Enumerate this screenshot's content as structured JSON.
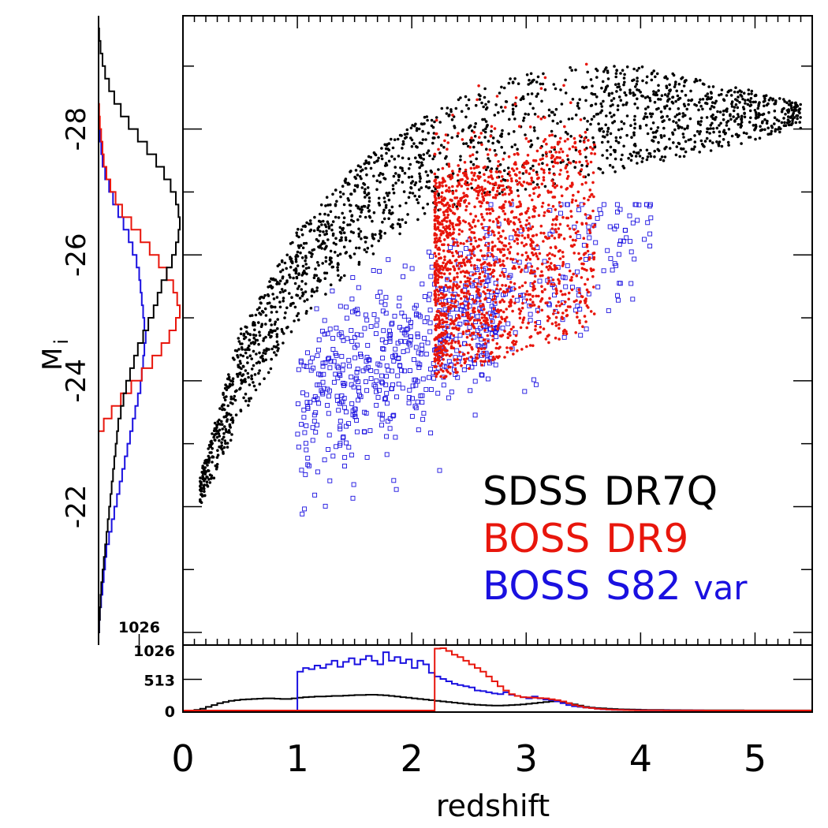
{
  "chart_data": {
    "type": "scatter",
    "title": "",
    "xlabel": "redshift",
    "ylabel": "M",
    "ylabel_subscript": "i",
    "xlim": [
      0,
      5.5
    ],
    "ylim": [
      -19.8,
      -29.8
    ],
    "x_ticks": [
      "0",
      "1",
      "2",
      "3",
      "4",
      "5"
    ],
    "y_ticks": [
      "-22",
      "-24",
      "-26",
      "-28"
    ],
    "hist_ticks": [
      "0",
      "513",
      "1026"
    ],
    "hist_tick_left": "1026",
    "legend_placement": "bottom-right",
    "grid": false,
    "series": [
      {
        "name": "SDSS DR7Q",
        "name_parts": [
          "SDSS",
          "DR7Q"
        ],
        "color": "#000000",
        "marker": "dot",
        "approx_count": 2200,
        "envelope_z": [
          0.15,
          0.5,
          1.0,
          1.5,
          2.0,
          2.5,
          3.0,
          3.5,
          4.0,
          4.5,
          5.0,
          5.4
        ],
        "envelope_faint": [
          -22.0,
          -23.3,
          -24.9,
          -25.8,
          -26.4,
          -26.8,
          -27.0,
          -27.2,
          -27.4,
          -27.6,
          -27.8,
          -28.0
        ],
        "envelope_bright": [
          -22.5,
          -24.8,
          -26.4,
          -27.4,
          -28.1,
          -28.6,
          -28.9,
          -29.0,
          -29.0,
          -28.8,
          -28.6,
          -28.4
        ]
      },
      {
        "name": "BOSS DR9",
        "name_parts": [
          "BOSS",
          "DR9"
        ],
        "color": "#e8160c",
        "marker": "dot",
        "approx_count": 1700,
        "z_range": [
          2.2,
          3.6
        ],
        "mag_range": [
          -24.0,
          -27.4
        ]
      },
      {
        "name": "BOSS S82 var",
        "name_parts": [
          "BOSS",
          "S82",
          "var"
        ],
        "color": "#1a10e0",
        "marker": "open-square",
        "approx_count": 700,
        "z_range": [
          1.0,
          4.1
        ],
        "mag_range": [
          -20.8,
          -26.8
        ]
      }
    ],
    "redshift_histograms": {
      "bins_start": 0.0,
      "bin_width": 0.05,
      "SDSS DR7Q": [
        0,
        0,
        10,
        30,
        60,
        90,
        120,
        140,
        160,
        170,
        180,
        185,
        190,
        195,
        200,
        200,
        195,
        190,
        190,
        200,
        210,
        220,
        225,
        230,
        230,
        235,
        240,
        240,
        245,
        250,
        255,
        255,
        260,
        260,
        255,
        250,
        240,
        230,
        220,
        210,
        200,
        190,
        180,
        170,
        160,
        150,
        140,
        130,
        120,
        110,
        100,
        95,
        90,
        85,
        80,
        80,
        85,
        90,
        95,
        100,
        110,
        120,
        130,
        140,
        150,
        150,
        140,
        120,
        100,
        80,
        60,
        50,
        40,
        35,
        30,
        25,
        20,
        18,
        16,
        14,
        12,
        10,
        10,
        9,
        8,
        7,
        6,
        5,
        5,
        4,
        4,
        3,
        3,
        3,
        2,
        2,
        2,
        2,
        1,
        1,
        1,
        1,
        1,
        1,
        1,
        1,
        1,
        1,
        1,
        1
      ],
      "BOSS DR9": [
        0,
        0,
        0,
        0,
        0,
        0,
        0,
        0,
        0,
        0,
        0,
        0,
        0,
        0,
        0,
        0,
        0,
        0,
        0,
        0,
        0,
        0,
        0,
        0,
        0,
        0,
        0,
        0,
        0,
        0,
        0,
        0,
        0,
        0,
        0,
        0,
        0,
        0,
        0,
        0,
        0,
        0,
        0,
        0,
        1020,
        1026,
        980,
        920,
        880,
        820,
        760,
        700,
        640,
        560,
        480,
        400,
        330,
        270,
        240,
        220,
        215,
        210,
        205,
        200,
        185,
        170,
        150,
        120,
        90,
        70,
        50,
        40,
        30,
        22,
        16,
        12,
        9,
        7,
        5,
        4,
        3,
        3,
        2,
        2,
        1,
        1,
        1,
        1,
        1,
        1,
        1,
        0,
        0,
        0,
        0,
        0,
        0,
        0,
        0,
        0,
        0,
        0,
        0,
        0,
        0,
        0,
        0,
        0,
        0,
        0
      ],
      "BOSS S82 var": [
        0,
        0,
        0,
        0,
        0,
        0,
        0,
        0,
        0,
        0,
        0,
        0,
        0,
        0,
        0,
        0,
        0,
        0,
        0,
        0,
        640,
        700,
        680,
        740,
        700,
        760,
        820,
        720,
        800,
        860,
        760,
        840,
        900,
        820,
        760,
        960,
        820,
        880,
        780,
        840,
        700,
        820,
        760,
        620,
        560,
        520,
        480,
        440,
        420,
        400,
        380,
        330,
        320,
        300,
        280,
        270,
        300,
        260,
        240,
        220,
        200,
        230,
        200,
        180,
        170,
        150,
        120,
        90,
        70,
        60,
        50,
        40,
        30,
        20,
        15,
        12,
        10,
        8,
        6,
        5,
        4,
        3,
        3,
        2,
        2,
        1,
        1,
        1,
        1,
        1,
        1,
        0,
        0,
        0,
        0,
        0,
        0,
        0,
        0,
        0,
        0,
        0,
        0,
        0,
        0,
        0,
        0,
        0,
        0,
        0
      ]
    },
    "magnitude_histograms": {
      "bins_start": -29.8,
      "bin_width": 0.2,
      "SDSS DR7Q": [
        0,
        1,
        3,
        6,
        10,
        16,
        24,
        34,
        46,
        60,
        74,
        88,
        100,
        110,
        118,
        122,
        124,
        122,
        118,
        112,
        104,
        96,
        90,
        84,
        76,
        68,
        60,
        54,
        48,
        42,
        38,
        34,
        30,
        28,
        26,
        24,
        22,
        20,
        18,
        16,
        14,
        12,
        10,
        8,
        6,
        4,
        3,
        2,
        1,
        0
      ],
      "BOSS DR9": [
        0,
        0,
        0,
        0,
        0,
        0,
        0,
        1,
        2,
        4,
        6,
        8,
        12,
        18,
        26,
        36,
        50,
        64,
        78,
        92,
        104,
        114,
        120,
        124,
        118,
        108,
        96,
        82,
        66,
        50,
        34,
        20,
        8,
        0,
        0,
        0,
        0,
        0,
        0,
        0,
        0,
        0,
        0,
        0,
        0,
        0,
        0,
        0,
        0,
        0
      ],
      "BOSS S82 var": [
        0,
        0,
        0,
        0,
        0,
        0,
        0,
        0,
        1,
        2,
        4,
        6,
        10,
        16,
        22,
        30,
        38,
        46,
        52,
        58,
        62,
        64,
        66,
        68,
        70,
        72,
        70,
        68,
        66,
        64,
        60,
        56,
        52,
        48,
        44,
        40,
        36,
        32,
        28,
        24,
        20,
        16,
        12,
        10,
        8,
        6,
        4,
        2,
        1,
        0
      ]
    }
  }
}
